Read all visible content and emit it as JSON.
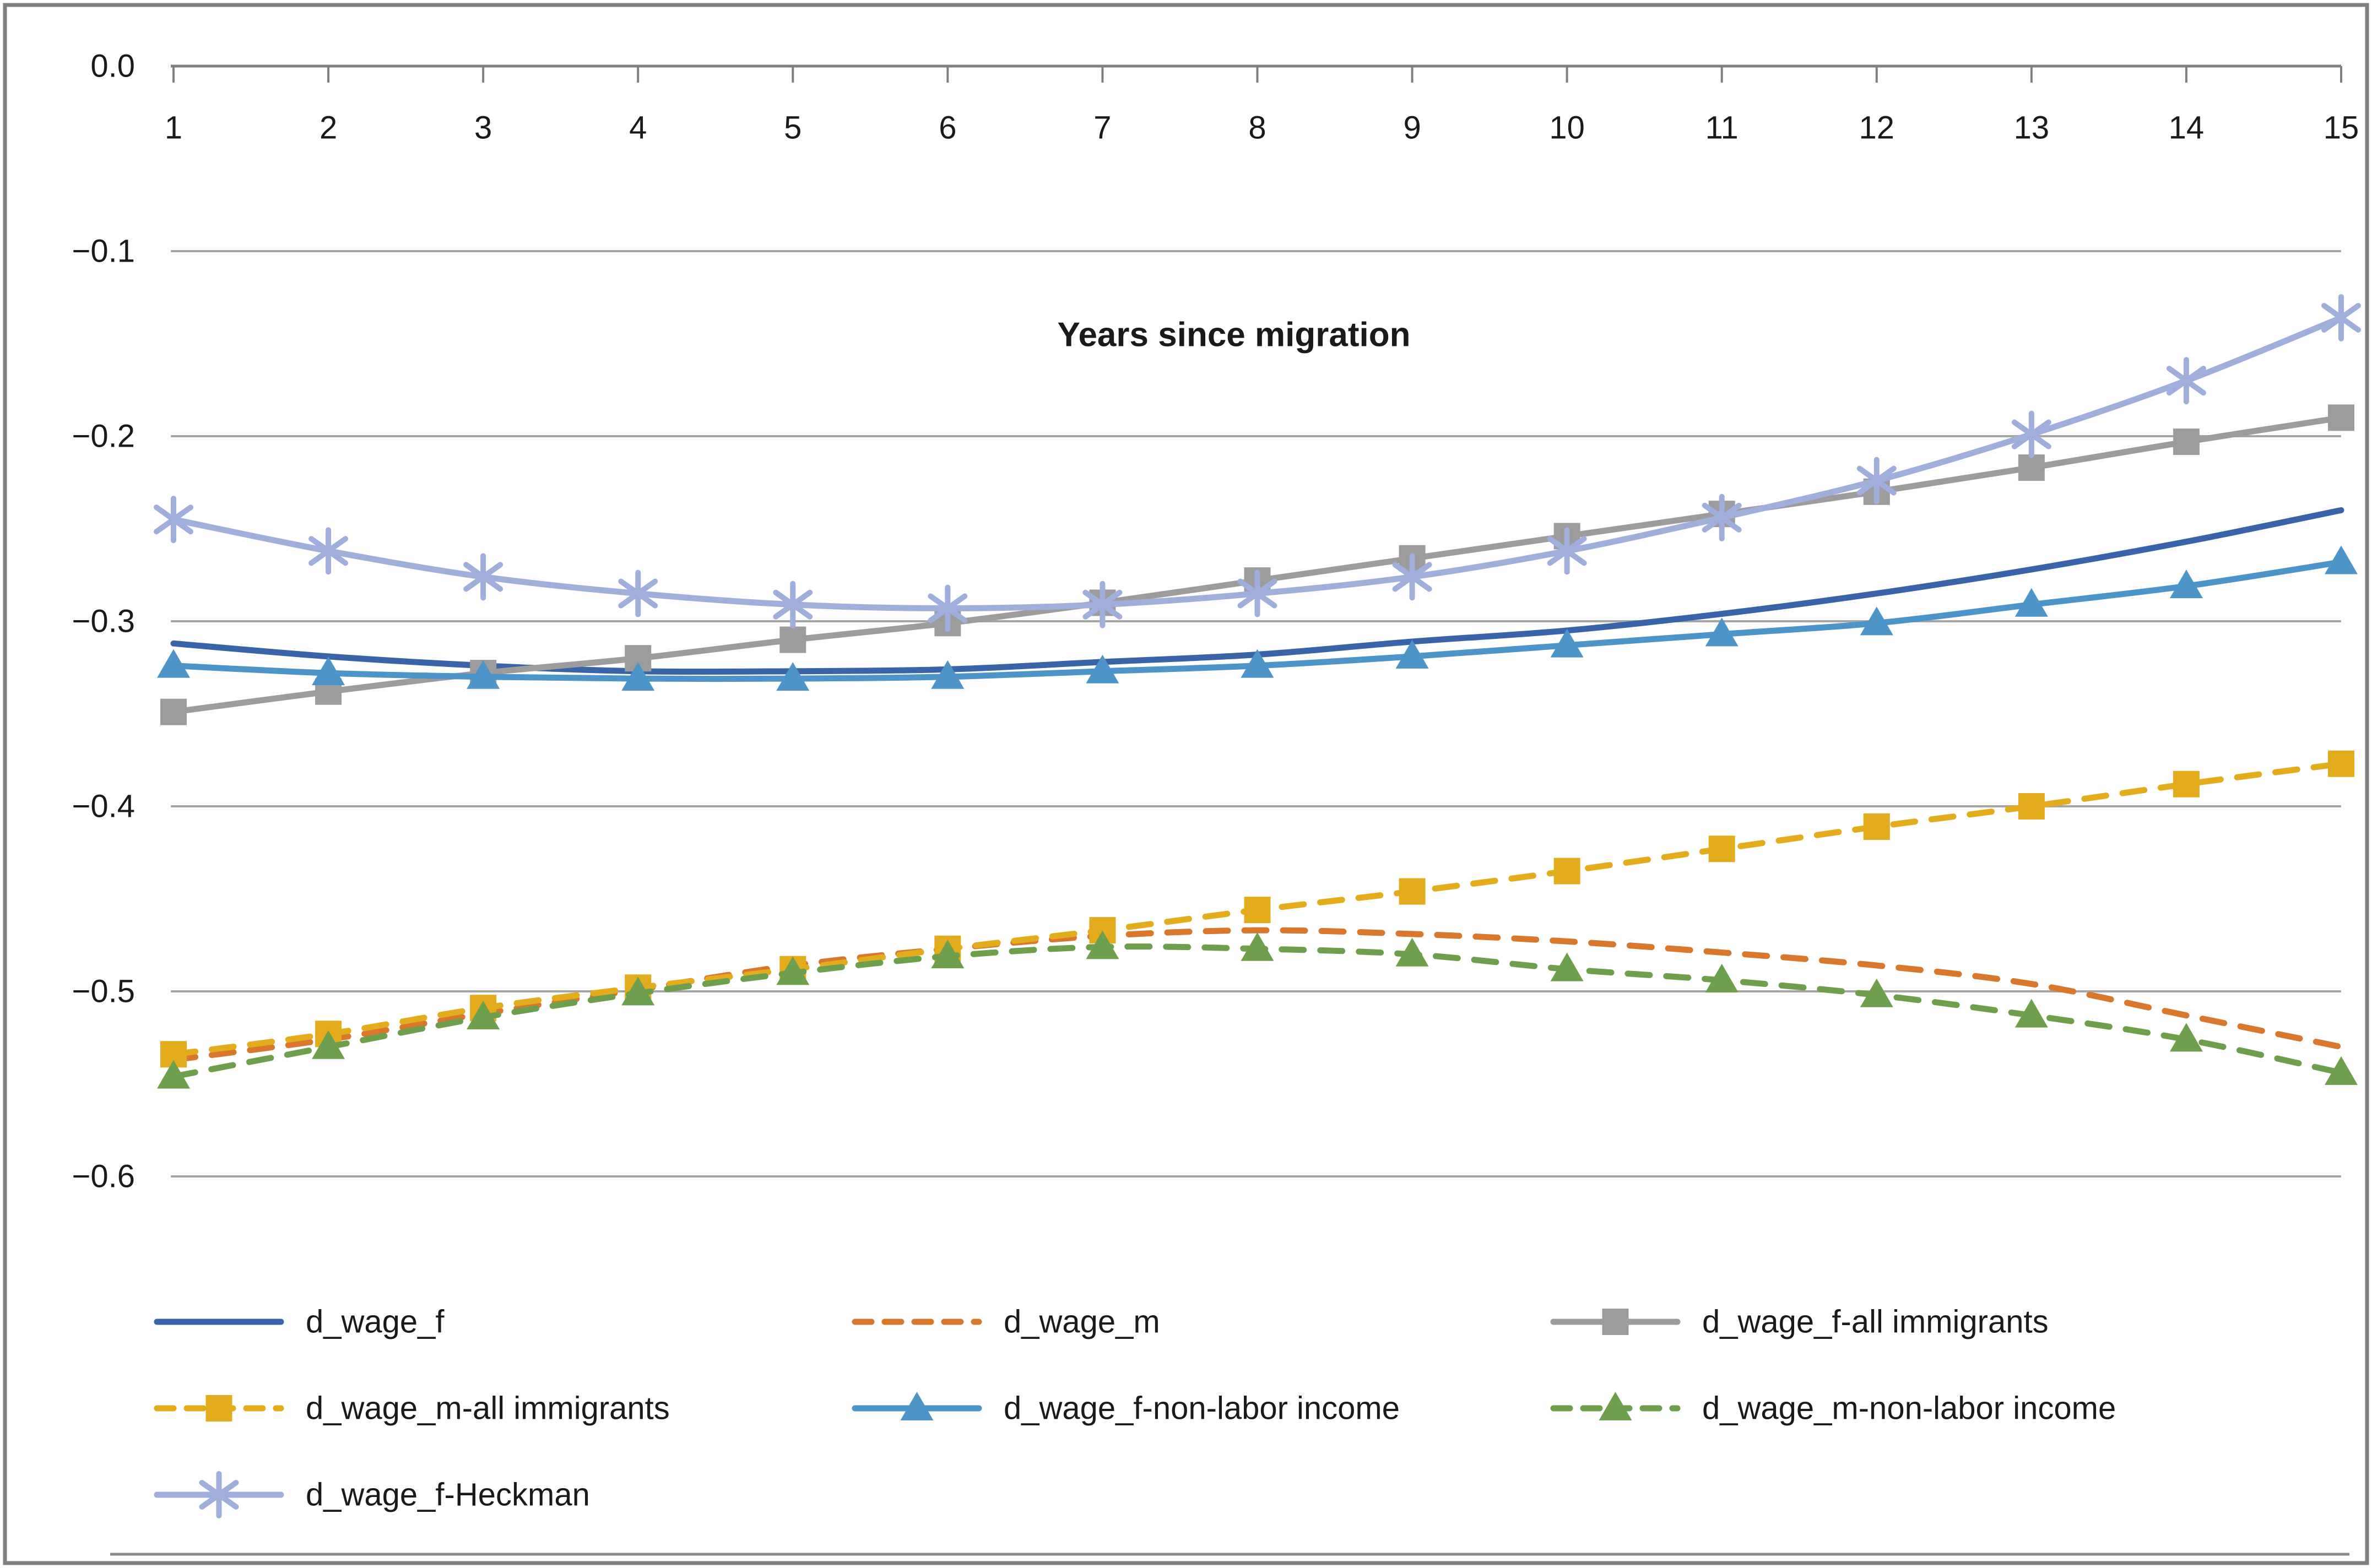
{
  "title": "Years since migration",
  "chart_data": {
    "type": "line",
    "title": "Years since migration",
    "x": [
      1,
      2,
      3,
      4,
      5,
      6,
      7,
      8,
      9,
      10,
      11,
      12,
      13,
      14,
      15
    ],
    "x_tick_labels": [
      "1",
      "2",
      "3",
      "4",
      "5",
      "6",
      "7",
      "8",
      "9",
      "10",
      "11",
      "12",
      "13",
      "14",
      "15"
    ],
    "y_tick_labels": [
      "0.0",
      "−0.1",
      "−0.2",
      "−0.3",
      "−0.4",
      "−0.5",
      "−0.6"
    ],
    "y_tick_values": [
      0,
      -0.1,
      -0.2,
      -0.3,
      -0.4,
      -0.5,
      -0.6
    ],
    "ylim": [
      -0.65,
      0.0
    ],
    "grid": true,
    "legend_position": "bottom-left",
    "series": [
      {
        "name": "d_wage_f",
        "color": "#3A64A8",
        "dashed": false,
        "marker": "none",
        "legend_row": 0,
        "legend_col": 0,
        "values": [
          -0.312,
          -0.319,
          -0.324,
          -0.327,
          -0.327,
          -0.326,
          -0.322,
          -0.318,
          -0.311,
          -0.305,
          -0.296,
          -0.285,
          -0.272,
          -0.257,
          -0.24
        ]
      },
      {
        "name": "d_wage_m",
        "color": "#D9782D",
        "dashed": true,
        "marker": "none",
        "legend_row": 0,
        "legend_col": 1,
        "values": [
          -0.537,
          -0.526,
          -0.512,
          -0.499,
          -0.486,
          -0.477,
          -0.47,
          -0.467,
          -0.469,
          -0.473,
          -0.479,
          -0.486,
          -0.496,
          -0.513,
          -0.53
        ]
      },
      {
        "name": "d_wage_f-all immigrants",
        "color": "#9C9C9C",
        "dashed": false,
        "marker": "square",
        "legend_row": 0,
        "legend_col": 2,
        "values": [
          -0.349,
          -0.338,
          -0.328,
          -0.32,
          -0.31,
          -0.301,
          -0.29,
          -0.278,
          -0.266,
          -0.254,
          -0.242,
          -0.23,
          -0.217,
          -0.203,
          -0.19
        ]
      },
      {
        "name": "d_wage_m-all immigrants",
        "color": "#E3AC1C",
        "dashed": true,
        "marker": "square",
        "legend_row": 1,
        "legend_col": 0,
        "values": [
          -0.534,
          -0.523,
          -0.509,
          -0.498,
          -0.488,
          -0.477,
          -0.467,
          -0.456,
          -0.446,
          -0.435,
          -0.423,
          -0.411,
          -0.4,
          -0.388,
          -0.377
        ]
      },
      {
        "name": "d_wage_f-non-labor income",
        "color": "#4D95C8",
        "dashed": false,
        "marker": "triangle",
        "legend_row": 1,
        "legend_col": 1,
        "values": [
          -0.324,
          -0.328,
          -0.33,
          -0.331,
          -0.331,
          -0.33,
          -0.327,
          -0.324,
          -0.319,
          -0.313,
          -0.307,
          -0.301,
          -0.291,
          -0.281,
          -0.268
        ]
      },
      {
        "name": "d_wage_m-non-labor income",
        "color": "#6E9F4D",
        "dashed": true,
        "marker": "triangle",
        "legend_row": 1,
        "legend_col": 2,
        "values": [
          -0.546,
          -0.53,
          -0.514,
          -0.501,
          -0.49,
          -0.481,
          -0.476,
          -0.477,
          -0.48,
          -0.488,
          -0.494,
          -0.502,
          -0.513,
          -0.526,
          -0.544
        ]
      },
      {
        "name": "d_wage_f-Heckman",
        "color": "#9FAEDB",
        "dashed": false,
        "marker": "asterisk",
        "legend_row": 2,
        "legend_col": 0,
        "values": [
          -0.245,
          -0.262,
          -0.276,
          -0.285,
          -0.291,
          -0.293,
          -0.291,
          -0.285,
          -0.276,
          -0.262,
          -0.244,
          -0.224,
          -0.199,
          -0.17,
          -0.136
        ]
      }
    ]
  },
  "colors": {
    "gridline": "#A6A6A6",
    "axis": "#7F7F7F",
    "border": "#7F7F7F",
    "bottom_rule": "#8C8C8C",
    "text": "#1a1a1a"
  }
}
